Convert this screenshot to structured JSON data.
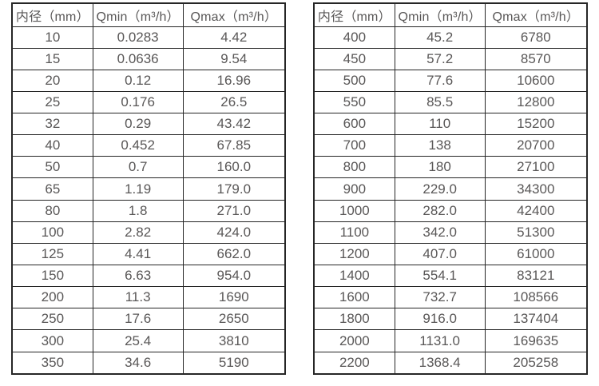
{
  "colors": {
    "border": "#262626",
    "text": "#595757",
    "background": "#ffffff"
  },
  "chart_data": [
    {
      "type": "table",
      "columns": [
        "内径（mm）",
        "Qmin（m³/h）",
        "Qmax（m³/h）"
      ],
      "rows": [
        [
          "10",
          "0.0283",
          "4.42"
        ],
        [
          "15",
          "0.0636",
          "9.54"
        ],
        [
          "20",
          "0.12",
          "16.96"
        ],
        [
          "25",
          "0.176",
          "26.5"
        ],
        [
          "32",
          "0.29",
          "43.42"
        ],
        [
          "40",
          "0.452",
          "67.85"
        ],
        [
          "50",
          "0.7",
          "160.0"
        ],
        [
          "65",
          "1.19",
          "179.0"
        ],
        [
          "80",
          "1.8",
          "271.0"
        ],
        [
          "100",
          "2.82",
          "424.0"
        ],
        [
          "125",
          "4.41",
          "662.0"
        ],
        [
          "150",
          "6.63",
          "954.0"
        ],
        [
          "200",
          "11.3",
          "1690"
        ],
        [
          "250",
          "17.6",
          "2650"
        ],
        [
          "300",
          "25.4",
          "3810"
        ],
        [
          "350",
          "34.6",
          "5190"
        ]
      ]
    },
    {
      "type": "table",
      "columns": [
        "内径（mm）",
        "Qmin（m³/h）",
        "Qmax（m³/h）"
      ],
      "rows": [
        [
          "400",
          "45.2",
          "6780"
        ],
        [
          "450",
          "57.2",
          "8570"
        ],
        [
          "500",
          "77.6",
          "10600"
        ],
        [
          "550",
          "85.5",
          "12800"
        ],
        [
          "600",
          "110",
          "15200"
        ],
        [
          "700",
          "138",
          "20700"
        ],
        [
          "800",
          "180",
          "27100"
        ],
        [
          "900",
          "229.0",
          "34300"
        ],
        [
          "1000",
          "282.0",
          "42400"
        ],
        [
          "1100",
          "342.0",
          "51300"
        ],
        [
          "1200",
          "407.0",
          "61000"
        ],
        [
          "1400",
          "554.1",
          "83121"
        ],
        [
          "1600",
          "732.7",
          "108566"
        ],
        [
          "1800",
          "916.0",
          "137404"
        ],
        [
          "2000",
          "1131.0",
          "169635"
        ],
        [
          "2200",
          "1368.4",
          "205258"
        ]
      ]
    }
  ]
}
